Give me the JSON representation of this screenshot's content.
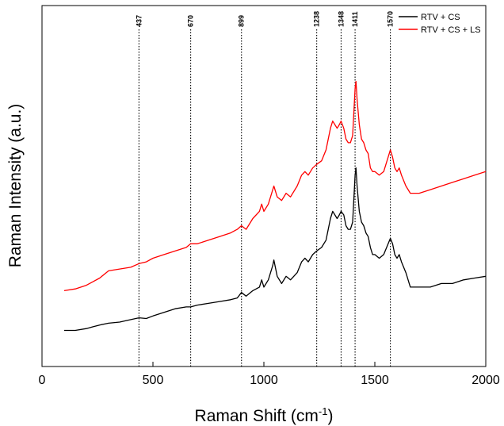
{
  "chart_data": {
    "type": "line",
    "title": "",
    "xlabel": "Raman Shift (cm",
    "xlabel_sup": "-1",
    "xlabel_end": ")",
    "ylabel": "Raman Intensity (a.u.)",
    "xlim": [
      0,
      2000
    ],
    "ylim": [
      0,
      100
    ],
    "x_ticks": [
      0,
      500,
      1000,
      1500,
      2000
    ],
    "y_ticks_shown": false,
    "grid": false,
    "legend_position": "top-right",
    "annotations": [
      437,
      670,
      899,
      1238,
      1348,
      1411,
      1570
    ],
    "series": [
      {
        "name": "RTV + CS",
        "color": "#000000",
        "x": [
          100,
          150,
          200,
          230,
          260,
          300,
          350,
          400,
          437,
          470,
          500,
          550,
          600,
          650,
          670,
          700,
          750,
          800,
          850,
          880,
          899,
          920,
          950,
          980,
          990,
          1000,
          1020,
          1040,
          1045,
          1060,
          1080,
          1100,
          1120,
          1150,
          1170,
          1185,
          1200,
          1220,
          1238,
          1260,
          1280,
          1300,
          1310,
          1320,
          1330,
          1340,
          1348,
          1360,
          1370,
          1380,
          1390,
          1400,
          1411,
          1415,
          1420,
          1430,
          1440,
          1450,
          1460,
          1470,
          1480,
          1490,
          1500,
          1520,
          1540,
          1560,
          1570,
          1580,
          1590,
          1600,
          1610,
          1620,
          1640,
          1660,
          1700,
          1750,
          1800,
          1850,
          1900,
          1950,
          2000
        ],
        "y": [
          10,
          10,
          10.5,
          11,
          11.5,
          12,
          12.3,
          13,
          13.5,
          13.3,
          14,
          15,
          16,
          16.5,
          16.5,
          17,
          17.5,
          18,
          18.5,
          19,
          20.5,
          19.5,
          21,
          22,
          24,
          22,
          24,
          28,
          29.5,
          25,
          23,
          25,
          24,
          26,
          29,
          30,
          29,
          31,
          32,
          33,
          35,
          41,
          43,
          42,
          41,
          42,
          43,
          42,
          39,
          38,
          38,
          40,
          53,
          55,
          50,
          43,
          40,
          39,
          37,
          36,
          33,
          31,
          31,
          30,
          31,
          34,
          35.5,
          34,
          31,
          30,
          31,
          29,
          26,
          22,
          22,
          22,
          23,
          23,
          24,
          24.5,
          25
        ]
      },
      {
        "name": "RTV + CS + LS",
        "color": "#ff0000",
        "x": [
          100,
          150,
          200,
          230,
          260,
          300,
          350,
          400,
          437,
          470,
          500,
          550,
          600,
          650,
          670,
          700,
          750,
          800,
          850,
          880,
          899,
          920,
          950,
          980,
          990,
          1000,
          1020,
          1040,
          1045,
          1060,
          1080,
          1100,
          1120,
          1150,
          1170,
          1185,
          1200,
          1220,
          1238,
          1260,
          1280,
          1300,
          1310,
          1320,
          1330,
          1340,
          1348,
          1360,
          1370,
          1380,
          1390,
          1400,
          1411,
          1415,
          1420,
          1430,
          1440,
          1450,
          1460,
          1470,
          1480,
          1490,
          1500,
          1520,
          1540,
          1560,
          1570,
          1580,
          1590,
          1600,
          1610,
          1620,
          1640,
          1660,
          1700,
          1750,
          1800,
          1850,
          1900,
          1950,
          2000
        ],
        "y": [
          21,
          21.5,
          22.5,
          23.5,
          24.5,
          26.5,
          27,
          27.5,
          28.5,
          29,
          30,
          31,
          32,
          33,
          34,
          34,
          35,
          36,
          37,
          38,
          39,
          38,
          41,
          43,
          45,
          43,
          45,
          49,
          50,
          47,
          46,
          48,
          47,
          50,
          53,
          54,
          53,
          55,
          56,
          57,
          60,
          66,
          68,
          67,
          66,
          67,
          68,
          66,
          63,
          62,
          62,
          64,
          77,
          79,
          74,
          67,
          63,
          62,
          60,
          59,
          55,
          54,
          54,
          53,
          54,
          58,
          60,
          58,
          55,
          54,
          55,
          53,
          50,
          48,
          48,
          49,
          50,
          51,
          52,
          53,
          54
        ]
      }
    ]
  }
}
